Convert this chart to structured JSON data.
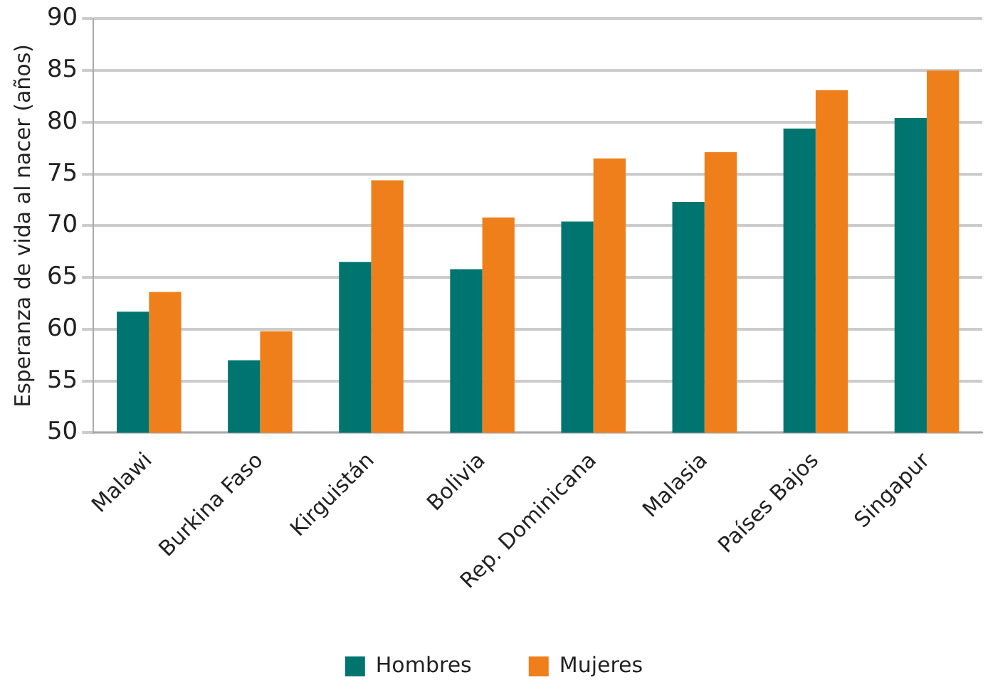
{
  "chart_data": {
    "type": "bar",
    "ylabel": "Esperanza de vida al nacer (años)",
    "categories": [
      "Malawi",
      "Burkina Faso",
      "Kirguistán",
      "Bolivia",
      "Rep. Dominicana",
      "Malasia",
      "Países Bajos",
      "Singapur"
    ],
    "series": [
      {
        "name": "Hombres",
        "color": "#007570",
        "values": [
          61.7,
          57.0,
          66.5,
          65.8,
          70.4,
          72.3,
          79.4,
          80.4
        ]
      },
      {
        "name": "Mujeres",
        "color": "#ef7f1a",
        "values": [
          63.6,
          59.8,
          74.4,
          70.8,
          76.5,
          77.1,
          83.1,
          85.0
        ]
      }
    ],
    "ylim": [
      50,
      90
    ],
    "yticks": [
      50,
      55,
      60,
      65,
      70,
      75,
      80,
      85,
      90
    ],
    "grid": "y",
    "legend": "bottom"
  }
}
